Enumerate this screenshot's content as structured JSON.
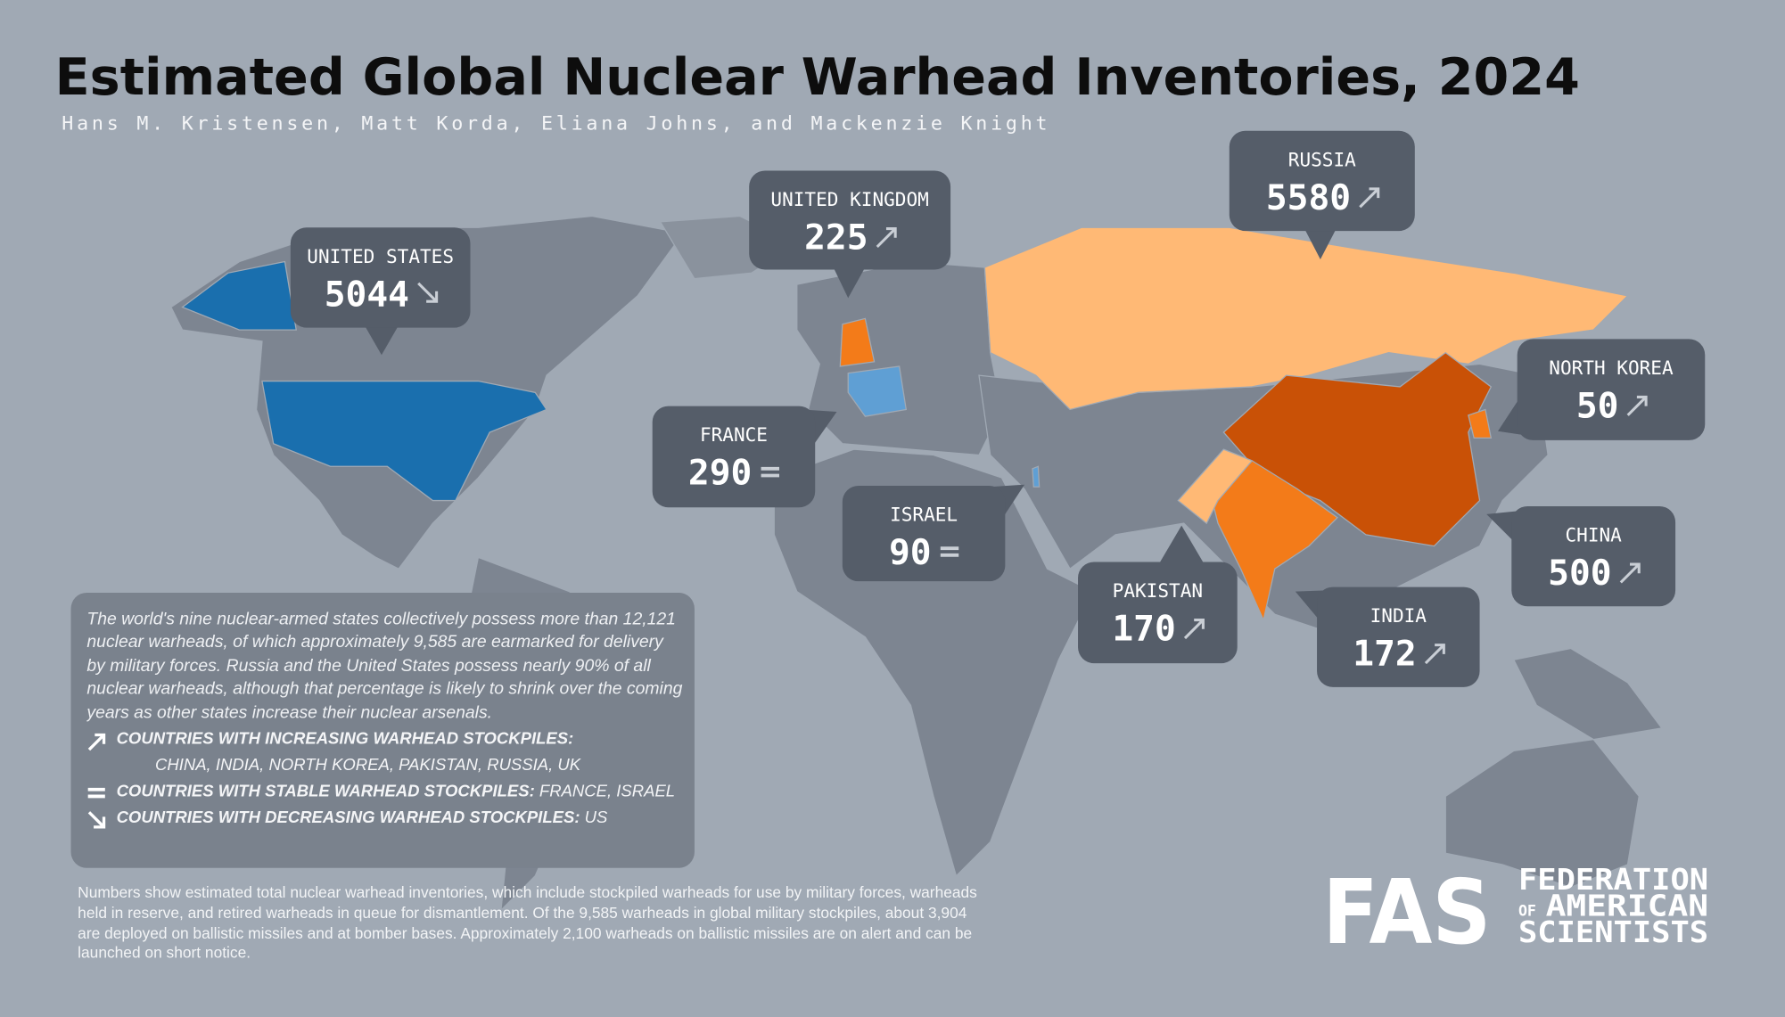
{
  "title": "Estimated Global Nuclear Warhead Inventories, 2024",
  "authors": "Hans M. Kristensen, Matt Korda, Eliana Johns, and Mackenzie Knight",
  "countries": [
    {
      "name": "UNITED STATES",
      "value": 5044
    },
    {
      "name": "UNITED KINGDOM",
      "value": 225
    },
    {
      "name": "RUSSIA",
      "value": 5580
    },
    {
      "name": "FRANCE",
      "value": 290
    },
    {
      "name": "ISRAEL",
      "value": 90
    },
    {
      "name": "PAKISTAN",
      "value": 170
    },
    {
      "name": "INDIA",
      "value": 172
    },
    {
      "name": "CHINA",
      "value": 500
    },
    {
      "name": "NORTH KOREA",
      "value": 50
    }
  ],
  "summary": "The world's nine nuclear-armed states collectively possess more than 12,121 nuclear warheads, of which approximately 9,585 are earmarked for delivery by military forces. Russia and the United States possess nearly 90% of all nuclear warheads, although that percentage is likely to shrink over the coming years as other states increase their nuclear arsenals.",
  "legend": [
    {
      "label": "COUNTRIES WITH INCREASING WARHEAD STOCKPILES:",
      "countries": "CHINA, INDIA, NORTH KOREA, PAKISTAN, RUSSIA, UK"
    },
    {
      "label": "COUNTRIES WITH STABLE WARHEAD STOCKPILES:",
      "countries": "FRANCE, ISRAEL"
    },
    {
      "label": "COUNTRIES WITH DECREASING WARHEAD STOCKPILES:",
      "countries": "US"
    }
  ],
  "footnote": "Numbers show estimated total nuclear warhead inventories, which include stockpiled warheads for use by military forces, warheads held in reserve, and retired warheads in queue for dismantlement. Of the 9,585 warheads in global military stockpiles, about 3,904 are deployed on ballistic missiles and at bomber bases. Approximately 2,100 warheads on ballistic missiles are on alert and can be launched on short notice.",
  "logo": {
    "mark": "FAS",
    "line1": "FEDERATION",
    "of": "OF",
    "line2": "AMERICAN",
    "line3": "SCIENTISTS"
  }
}
